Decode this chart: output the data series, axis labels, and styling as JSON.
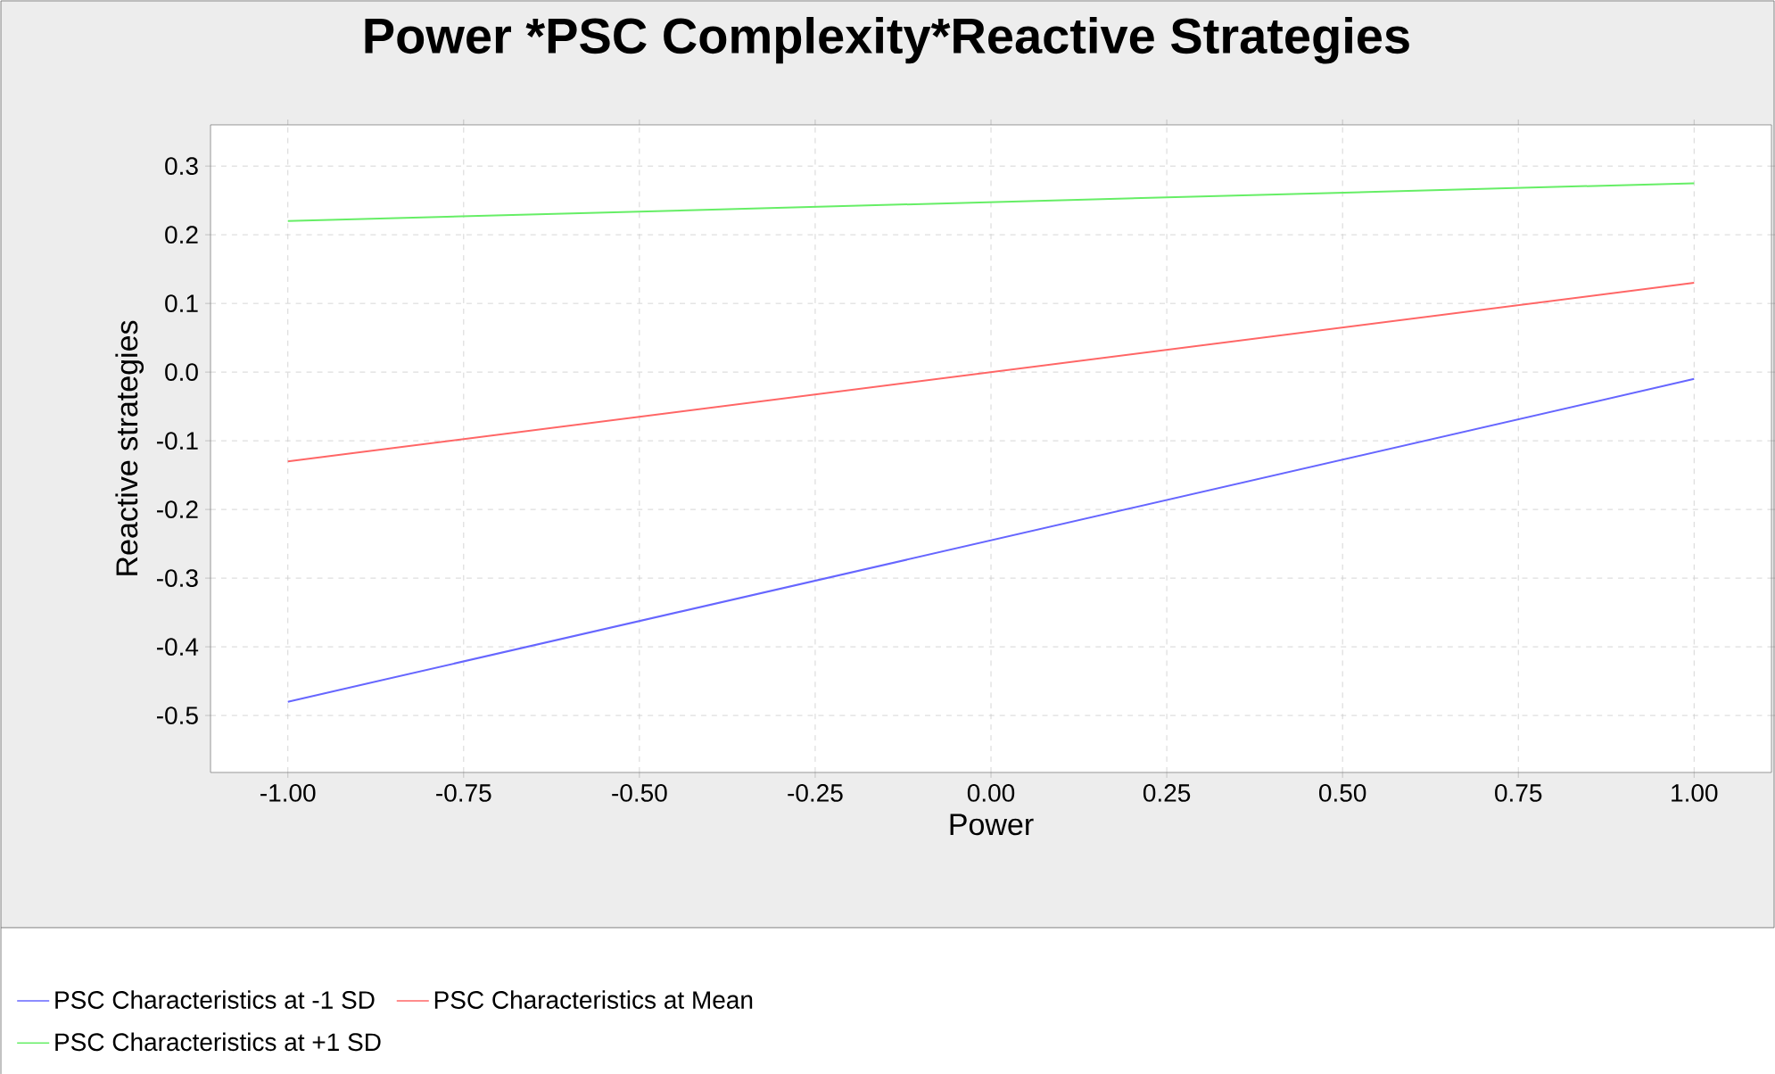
{
  "chart_data": {
    "type": "line",
    "title": "Power *PSC Complexity*Reactive Strategies",
    "xlabel": "Power",
    "ylabel": "Reactive strategies",
    "x": [
      -1,
      1
    ],
    "series": [
      {
        "name": "PSC Characteristics at -1 SD",
        "color": "#6666ff",
        "values": [
          -0.48,
          -0.01
        ]
      },
      {
        "name": "PSC Characteristics at Mean",
        "color": "#ff6666",
        "values": [
          -0.13,
          0.13
        ]
      },
      {
        "name": "PSC Characteristics at +1 SD",
        "color": "#66ee66",
        "values": [
          0.22,
          0.275
        ]
      }
    ],
    "xlim": [
      -1.11,
      1.11
    ],
    "ylim": [
      -0.583,
      0.36
    ],
    "xticks": [
      {
        "value": -1,
        "label": "-1.00"
      },
      {
        "value": -0.75,
        "label": "-0.75"
      },
      {
        "value": -0.5,
        "label": "-0.50"
      },
      {
        "value": -0.25,
        "label": "-0.25"
      },
      {
        "value": 0,
        "label": "0.00"
      },
      {
        "value": 0.25,
        "label": "0.25"
      },
      {
        "value": 0.5,
        "label": "0.50"
      },
      {
        "value": 0.75,
        "label": "0.75"
      },
      {
        "value": 1,
        "label": "1.00"
      }
    ],
    "yticks": [
      {
        "value": -0.5,
        "label": "-0.5"
      },
      {
        "value": -0.4,
        "label": "-0.4"
      },
      {
        "value": -0.3,
        "label": "-0.3"
      },
      {
        "value": -0.2,
        "label": "-0.2"
      },
      {
        "value": -0.1,
        "label": "-0.1"
      },
      {
        "value": 0,
        "label": "0.0"
      },
      {
        "value": 0.1,
        "label": "0.1"
      },
      {
        "value": 0.2,
        "label": "0.2"
      },
      {
        "value": 0.3,
        "label": "0.3"
      }
    ],
    "grid": true,
    "legend": "bottom",
    "marker": "none",
    "line_style": "solid"
  }
}
